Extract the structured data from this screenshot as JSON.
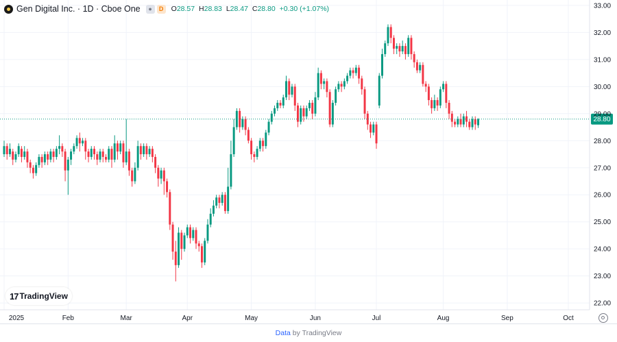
{
  "legend": {
    "symbol": "Gen Digital Inc. · 1D · Cboe One",
    "badge": "D",
    "open_label": "O",
    "open": "28.57",
    "high_label": "H",
    "high": "28.83",
    "low_label": "L",
    "low": "28.47",
    "close_label": "C",
    "close": "28.80",
    "change": "+0.30 (+1.07%)"
  },
  "watermark": {
    "mark": "17",
    "name": "TradingView"
  },
  "footer": {
    "link": "Data",
    "text": " by TradingView"
  },
  "colors": {
    "up": "#089981",
    "down": "#f23645",
    "grid": "#f0f3fa",
    "axis_text": "#131722"
  },
  "chart_data": {
    "type": "candlestick",
    "ylim": [
      21.75,
      33.2
    ],
    "y_ticks": [
      "22.00",
      "23.00",
      "24.00",
      "25.00",
      "26.00",
      "27.00",
      "28.00",
      "29.00",
      "30.00",
      "31.00",
      "32.00",
      "33.00"
    ],
    "x_ticks": [
      {
        "label": "2025",
        "date": "2025-01-02"
      },
      {
        "label": "Feb",
        "date": "2025-02-03"
      },
      {
        "label": "Mar",
        "date": "2025-03-03"
      },
      {
        "label": "Apr",
        "date": "2025-04-01"
      },
      {
        "label": "May",
        "date": "2025-05-01"
      },
      {
        "label": "Jun",
        "date": "2025-06-02"
      },
      {
        "label": "Jul",
        "date": "2025-07-01"
      },
      {
        "label": "Aug",
        "date": "2025-08-01"
      },
      {
        "label": "Sep",
        "date": "2025-09-02"
      },
      {
        "label": "Oct",
        "date": "2025-10-01"
      }
    ],
    "last_price": "28.80",
    "last_value": 28.8,
    "candles": [
      [
        27.5,
        27.8,
        27.4,
        28.0
      ],
      [
        27.8,
        27.5,
        27.3,
        27.9
      ],
      [
        27.5,
        27.7,
        27.4,
        27.9
      ],
      [
        27.6,
        27.3,
        27.1,
        27.7
      ],
      [
        27.3,
        27.5,
        27.2,
        27.6
      ],
      [
        27.5,
        27.8,
        27.4,
        27.9
      ],
      [
        27.7,
        27.4,
        27.2,
        27.8
      ],
      [
        27.4,
        27.6,
        27.3,
        27.8
      ],
      [
        27.6,
        27.2,
        27.0,
        27.7
      ],
      [
        27.2,
        27.0,
        26.8,
        27.3
      ],
      [
        27.0,
        26.8,
        26.6,
        27.1
      ],
      [
        26.8,
        27.1,
        26.7,
        27.2
      ],
      [
        27.1,
        27.4,
        27.0,
        27.5
      ],
      [
        27.4,
        27.2,
        27.0,
        27.5
      ],
      [
        27.2,
        27.5,
        27.1,
        27.6
      ],
      [
        27.5,
        27.3,
        27.1,
        27.6
      ],
      [
        27.3,
        27.6,
        27.2,
        27.7
      ],
      [
        27.6,
        27.4,
        27.2,
        27.7
      ],
      [
        27.4,
        27.7,
        27.3,
        27.8
      ],
      [
        27.7,
        27.8,
        27.5,
        28.2
      ],
      [
        27.8,
        27.6,
        27.4,
        27.9
      ],
      [
        27.6,
        26.9,
        26.5,
        27.7
      ],
      [
        26.9,
        27.3,
        26.0,
        27.4
      ],
      [
        27.3,
        27.6,
        27.1,
        27.7
      ],
      [
        27.6,
        27.8,
        27.5,
        27.9
      ],
      [
        27.8,
        28.1,
        27.7,
        28.2
      ],
      [
        28.1,
        27.9,
        27.6,
        28.3
      ],
      [
        27.9,
        28.0,
        27.8,
        28.1
      ],
      [
        28.0,
        27.6,
        27.3,
        28.1
      ],
      [
        27.6,
        27.4,
        27.2,
        27.7
      ],
      [
        27.4,
        27.7,
        27.3,
        27.8
      ],
      [
        27.7,
        27.5,
        27.3,
        27.8
      ],
      [
        27.5,
        27.3,
        27.1,
        27.6
      ],
      [
        27.3,
        27.6,
        27.2,
        27.7
      ],
      [
        27.6,
        27.4,
        27.2,
        27.7
      ],
      [
        27.4,
        27.3,
        27.2,
        27.5
      ],
      [
        27.3,
        27.7,
        27.2,
        27.8
      ],
      [
        27.7,
        27.3,
        27.0,
        27.8
      ],
      [
        27.3,
        27.9,
        27.2,
        28.2
      ],
      [
        27.9,
        27.6,
        27.3,
        28.0
      ],
      [
        27.6,
        27.9,
        27.5,
        28.0
      ],
      [
        27.9,
        27.2,
        27.0,
        28.0
      ],
      [
        27.2,
        27.6,
        27.1,
        28.8
      ],
      [
        27.6,
        26.9,
        26.7,
        27.7
      ],
      [
        26.9,
        26.5,
        26.3,
        27.0
      ],
      [
        26.5,
        27.0,
        26.4,
        27.2
      ],
      [
        27.0,
        27.8,
        26.9,
        28.0
      ],
      [
        27.8,
        27.5,
        27.3,
        27.9
      ],
      [
        27.5,
        27.8,
        27.4,
        27.9
      ],
      [
        27.8,
        27.5,
        27.3,
        27.9
      ],
      [
        27.5,
        27.7,
        27.4,
        27.8
      ],
      [
        27.7,
        27.4,
        27.2,
        27.8
      ],
      [
        27.4,
        27.0,
        26.8,
        27.5
      ],
      [
        27.0,
        26.6,
        26.3,
        27.1
      ],
      [
        26.6,
        26.9,
        26.4,
        27.0
      ],
      [
        26.9,
        26.5,
        26.0,
        27.0
      ],
      [
        26.5,
        26.1,
        25.9,
        26.6
      ],
      [
        26.1,
        24.9,
        24.7,
        26.2
      ],
      [
        24.9,
        23.9,
        23.6,
        25.0
      ],
      [
        23.9,
        23.4,
        22.8,
        24.3
      ],
      [
        23.4,
        24.6,
        23.3,
        24.8
      ],
      [
        24.6,
        24.0,
        23.6,
        24.7
      ],
      [
        24.0,
        24.5,
        23.9,
        24.6
      ],
      [
        24.5,
        24.8,
        24.4,
        24.9
      ],
      [
        24.8,
        24.4,
        24.2,
        24.9
      ],
      [
        24.4,
        24.7,
        24.3,
        24.8
      ],
      [
        24.7,
        24.2,
        24.0,
        24.8
      ],
      [
        24.2,
        24.1,
        23.9,
        24.3
      ],
      [
        24.1,
        23.5,
        23.3,
        24.2
      ],
      [
        23.5,
        24.3,
        23.4,
        24.4
      ],
      [
        24.3,
        24.9,
        24.2,
        25.1
      ],
      [
        24.9,
        25.3,
        24.8,
        25.5
      ],
      [
        25.3,
        25.6,
        25.2,
        25.8
      ],
      [
        25.6,
        25.9,
        25.5,
        26.0
      ],
      [
        25.9,
        25.7,
        25.5,
        26.0
      ],
      [
        25.7,
        26.0,
        25.6,
        26.1
      ],
      [
        26.0,
        25.4,
        25.3,
        26.1
      ],
      [
        25.4,
        26.3,
        25.3,
        27.0
      ],
      [
        26.3,
        27.5,
        26.2,
        28.0
      ],
      [
        27.5,
        28.5,
        27.4,
        28.8
      ],
      [
        28.5,
        29.1,
        28.4,
        29.2
      ],
      [
        29.1,
        28.5,
        28.3,
        29.2
      ],
      [
        28.5,
        28.8,
        28.4,
        28.9
      ],
      [
        28.8,
        28.4,
        28.2,
        28.9
      ],
      [
        28.4,
        28.0,
        27.9,
        28.5
      ],
      [
        28.0,
        27.5,
        27.3,
        28.1
      ],
      [
        27.5,
        27.4,
        27.2,
        27.6
      ],
      [
        27.4,
        27.7,
        27.3,
        27.8
      ],
      [
        27.7,
        28.0,
        27.6,
        28.1
      ],
      [
        28.0,
        27.8,
        27.6,
        28.1
      ],
      [
        27.8,
        28.3,
        27.7,
        28.4
      ],
      [
        28.3,
        28.7,
        28.2,
        28.8
      ],
      [
        28.7,
        29.0,
        28.6,
        29.1
      ],
      [
        29.0,
        29.2,
        28.9,
        29.3
      ],
      [
        29.2,
        29.4,
        29.1,
        29.5
      ],
      [
        29.4,
        29.3,
        29.2,
        29.5
      ],
      [
        29.3,
        29.6,
        29.2,
        29.7
      ],
      [
        29.6,
        30.2,
        29.5,
        30.4
      ],
      [
        30.2,
        29.7,
        29.5,
        30.3
      ],
      [
        29.7,
        30.0,
        29.6,
        30.1
      ],
      [
        30.0,
        29.3,
        29.1,
        30.1
      ],
      [
        29.3,
        28.7,
        28.5,
        29.4
      ],
      [
        28.7,
        29.2,
        28.6,
        29.3
      ],
      [
        29.2,
        28.9,
        28.7,
        29.3
      ],
      [
        28.9,
        29.2,
        28.8,
        29.3
      ],
      [
        29.2,
        29.4,
        29.1,
        29.5
      ],
      [
        29.4,
        29.0,
        28.8,
        29.5
      ],
      [
        29.0,
        29.6,
        28.9,
        29.8
      ],
      [
        29.6,
        30.5,
        29.5,
        30.7
      ],
      [
        30.5,
        30.1,
        29.9,
        30.6
      ],
      [
        30.1,
        30.2,
        29.9,
        30.3
      ],
      [
        30.2,
        29.8,
        29.6,
        30.3
      ],
      [
        29.8,
        28.6,
        28.5,
        29.9
      ],
      [
        28.6,
        29.4,
        28.5,
        29.5
      ],
      [
        29.4,
        29.9,
        29.3,
        30.0
      ],
      [
        29.9,
        30.1,
        29.8,
        30.2
      ],
      [
        30.1,
        30.0,
        29.8,
        30.2
      ],
      [
        30.0,
        30.2,
        29.9,
        30.3
      ],
      [
        30.2,
        30.4,
        30.1,
        30.5
      ],
      [
        30.4,
        30.6,
        30.3,
        30.7
      ],
      [
        30.6,
        30.5,
        30.3,
        30.7
      ],
      [
        30.5,
        30.7,
        30.4,
        30.8
      ],
      [
        30.7,
        30.3,
        30.1,
        30.8
      ],
      [
        30.3,
        29.9,
        29.7,
        30.4
      ],
      [
        29.9,
        29.0,
        28.8,
        30.0
      ],
      [
        29.0,
        28.6,
        28.4,
        29.1
      ],
      [
        28.6,
        28.3,
        28.1,
        28.7
      ],
      [
        28.3,
        28.6,
        28.2,
        28.7
      ],
      [
        28.6,
        27.9,
        27.7,
        28.7
      ],
      [
        29.3,
        30.4,
        29.2,
        30.5
      ],
      [
        30.4,
        31.2,
        30.3,
        31.4
      ],
      [
        31.2,
        31.6,
        31.1,
        31.7
      ],
      [
        31.6,
        32.2,
        31.5,
        32.3
      ],
      [
        32.2,
        31.8,
        31.6,
        32.3
      ],
      [
        31.8,
        31.4,
        31.2,
        31.9
      ],
      [
        31.4,
        31.5,
        31.2,
        31.6
      ],
      [
        31.5,
        31.3,
        31.1,
        31.6
      ],
      [
        31.3,
        31.5,
        31.2,
        31.7
      ],
      [
        31.5,
        31.2,
        31.0,
        31.6
      ],
      [
        31.2,
        31.8,
        31.1,
        31.9
      ],
      [
        31.8,
        31.2,
        31.0,
        31.9
      ],
      [
        31.2,
        30.9,
        30.7,
        31.3
      ],
      [
        30.9,
        30.6,
        30.5,
        31.0
      ],
      [
        30.6,
        30.8,
        30.5,
        30.9
      ],
      [
        30.8,
        30.1,
        30.0,
        30.9
      ],
      [
        30.1,
        30.0,
        29.8,
        30.2
      ],
      [
        30.0,
        29.5,
        29.3,
        30.1
      ],
      [
        29.5,
        29.2,
        29.0,
        29.6
      ],
      [
        29.2,
        29.5,
        29.1,
        29.7
      ],
      [
        29.5,
        29.3,
        29.1,
        29.6
      ],
      [
        29.3,
        29.9,
        29.2,
        30.0
      ],
      [
        29.9,
        30.1,
        29.8,
        30.2
      ],
      [
        30.1,
        29.4,
        29.2,
        30.2
      ],
      [
        29.4,
        29.0,
        28.8,
        29.5
      ],
      [
        29.0,
        28.7,
        28.5,
        29.1
      ],
      [
        28.7,
        28.6,
        28.5,
        28.8
      ],
      [
        28.6,
        28.8,
        28.5,
        28.9
      ],
      [
        28.8,
        28.6,
        28.5,
        29.0
      ],
      [
        28.6,
        28.9,
        28.5,
        29.0
      ],
      [
        28.9,
        28.7,
        28.5,
        29.1
      ],
      [
        28.7,
        28.5,
        28.4,
        28.8
      ],
      [
        28.5,
        28.8,
        28.4,
        28.9
      ],
      [
        28.8,
        28.6,
        28.4,
        28.9
      ],
      [
        28.57,
        28.8,
        28.47,
        28.83
      ]
    ]
  }
}
